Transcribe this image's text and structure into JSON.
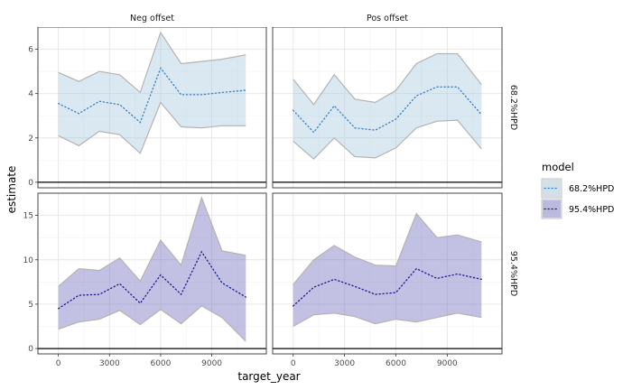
{
  "chart_data": {
    "type": "area",
    "xlabel": "target_year",
    "ylabel": "estimate",
    "x_ticks": [
      0,
      3000,
      6000,
      9000
    ],
    "facet_columns": [
      "Neg offset",
      "Pos offset"
    ],
    "facet_rows": [
      "68.2%HPD",
      "95.4%HPD"
    ],
    "legend": {
      "title": "model",
      "position": "right",
      "entries": [
        "68.2%HPD",
        "95.4%HPD"
      ]
    },
    "colors": {
      "68.2%HPD": "#a6c8e0",
      "95.4%HPD": "#7b76c0",
      "line_68": "#3f7fc0",
      "line_95": "#1a1a8c"
    },
    "panels": [
      {
        "row": "68.2%HPD",
        "col": "Neg offset",
        "ylim": [
          -0.25,
          7
        ],
        "y_ticks": [
          0,
          2,
          4,
          6
        ],
        "x": [
          0,
          1200,
          2400,
          3600,
          4800,
          6000,
          7200,
          8400,
          9600,
          11000
        ],
        "lower": [
          2.1,
          1.65,
          2.3,
          2.15,
          1.3,
          3.6,
          2.5,
          2.45,
          2.55,
          2.55
        ],
        "mean": [
          3.55,
          3.1,
          3.65,
          3.5,
          2.7,
          5.15,
          3.95,
          3.95,
          4.05,
          4.15
        ],
        "upper": [
          4.95,
          4.55,
          5.0,
          4.85,
          4.05,
          6.75,
          5.35,
          5.45,
          5.55,
          5.75
        ]
      },
      {
        "row": "68.2%HPD",
        "col": "Pos offset",
        "ylim": [
          -0.25,
          7
        ],
        "y_ticks": [
          0,
          2,
          4,
          6
        ],
        "x": [
          0,
          1200,
          2400,
          3600,
          4800,
          6000,
          7200,
          8400,
          9600,
          11000
        ],
        "lower": [
          1.85,
          1.05,
          2.0,
          1.15,
          1.1,
          1.55,
          2.45,
          2.75,
          2.8,
          1.5
        ],
        "mean": [
          3.25,
          2.25,
          3.45,
          2.45,
          2.35,
          2.85,
          3.9,
          4.3,
          4.3,
          3.05
        ],
        "upper": [
          4.65,
          3.5,
          4.85,
          3.75,
          3.6,
          4.15,
          5.35,
          5.8,
          5.8,
          4.4
        ]
      },
      {
        "row": "95.4%HPD",
        "col": "Neg offset",
        "ylim": [
          -0.6,
          17.5
        ],
        "y_ticks": [
          0,
          5,
          10,
          15
        ],
        "x": [
          0,
          1200,
          2400,
          3600,
          4800,
          6000,
          7200,
          8400,
          9600,
          11000
        ],
        "lower": [
          2.2,
          3.0,
          3.3,
          4.3,
          2.7,
          4.4,
          2.8,
          4.8,
          3.5,
          0.8
        ],
        "mean": [
          4.5,
          6.0,
          6.1,
          7.3,
          5.1,
          8.3,
          6.1,
          10.9,
          7.4,
          5.8
        ],
        "upper": [
          7.0,
          9.0,
          8.8,
          10.2,
          7.6,
          12.2,
          9.4,
          17.0,
          11.0,
          10.5
        ]
      },
      {
        "row": "95.4%HPD",
        "col": "Pos offset",
        "ylim": [
          -0.6,
          17.5
        ],
        "y_ticks": [
          0,
          5,
          10,
          15
        ],
        "x": [
          0,
          1200,
          2400,
          3600,
          4800,
          6000,
          7200,
          8400,
          9600,
          11000
        ],
        "lower": [
          2.5,
          3.8,
          4.0,
          3.6,
          2.8,
          3.3,
          3.0,
          3.5,
          4.0,
          3.5
        ],
        "mean": [
          4.8,
          6.9,
          7.8,
          7.0,
          6.1,
          6.3,
          9.0,
          7.9,
          8.4,
          7.8
        ],
        "upper": [
          7.2,
          10.0,
          11.6,
          10.3,
          9.4,
          9.3,
          15.2,
          12.5,
          12.8,
          12.0
        ]
      }
    ]
  }
}
